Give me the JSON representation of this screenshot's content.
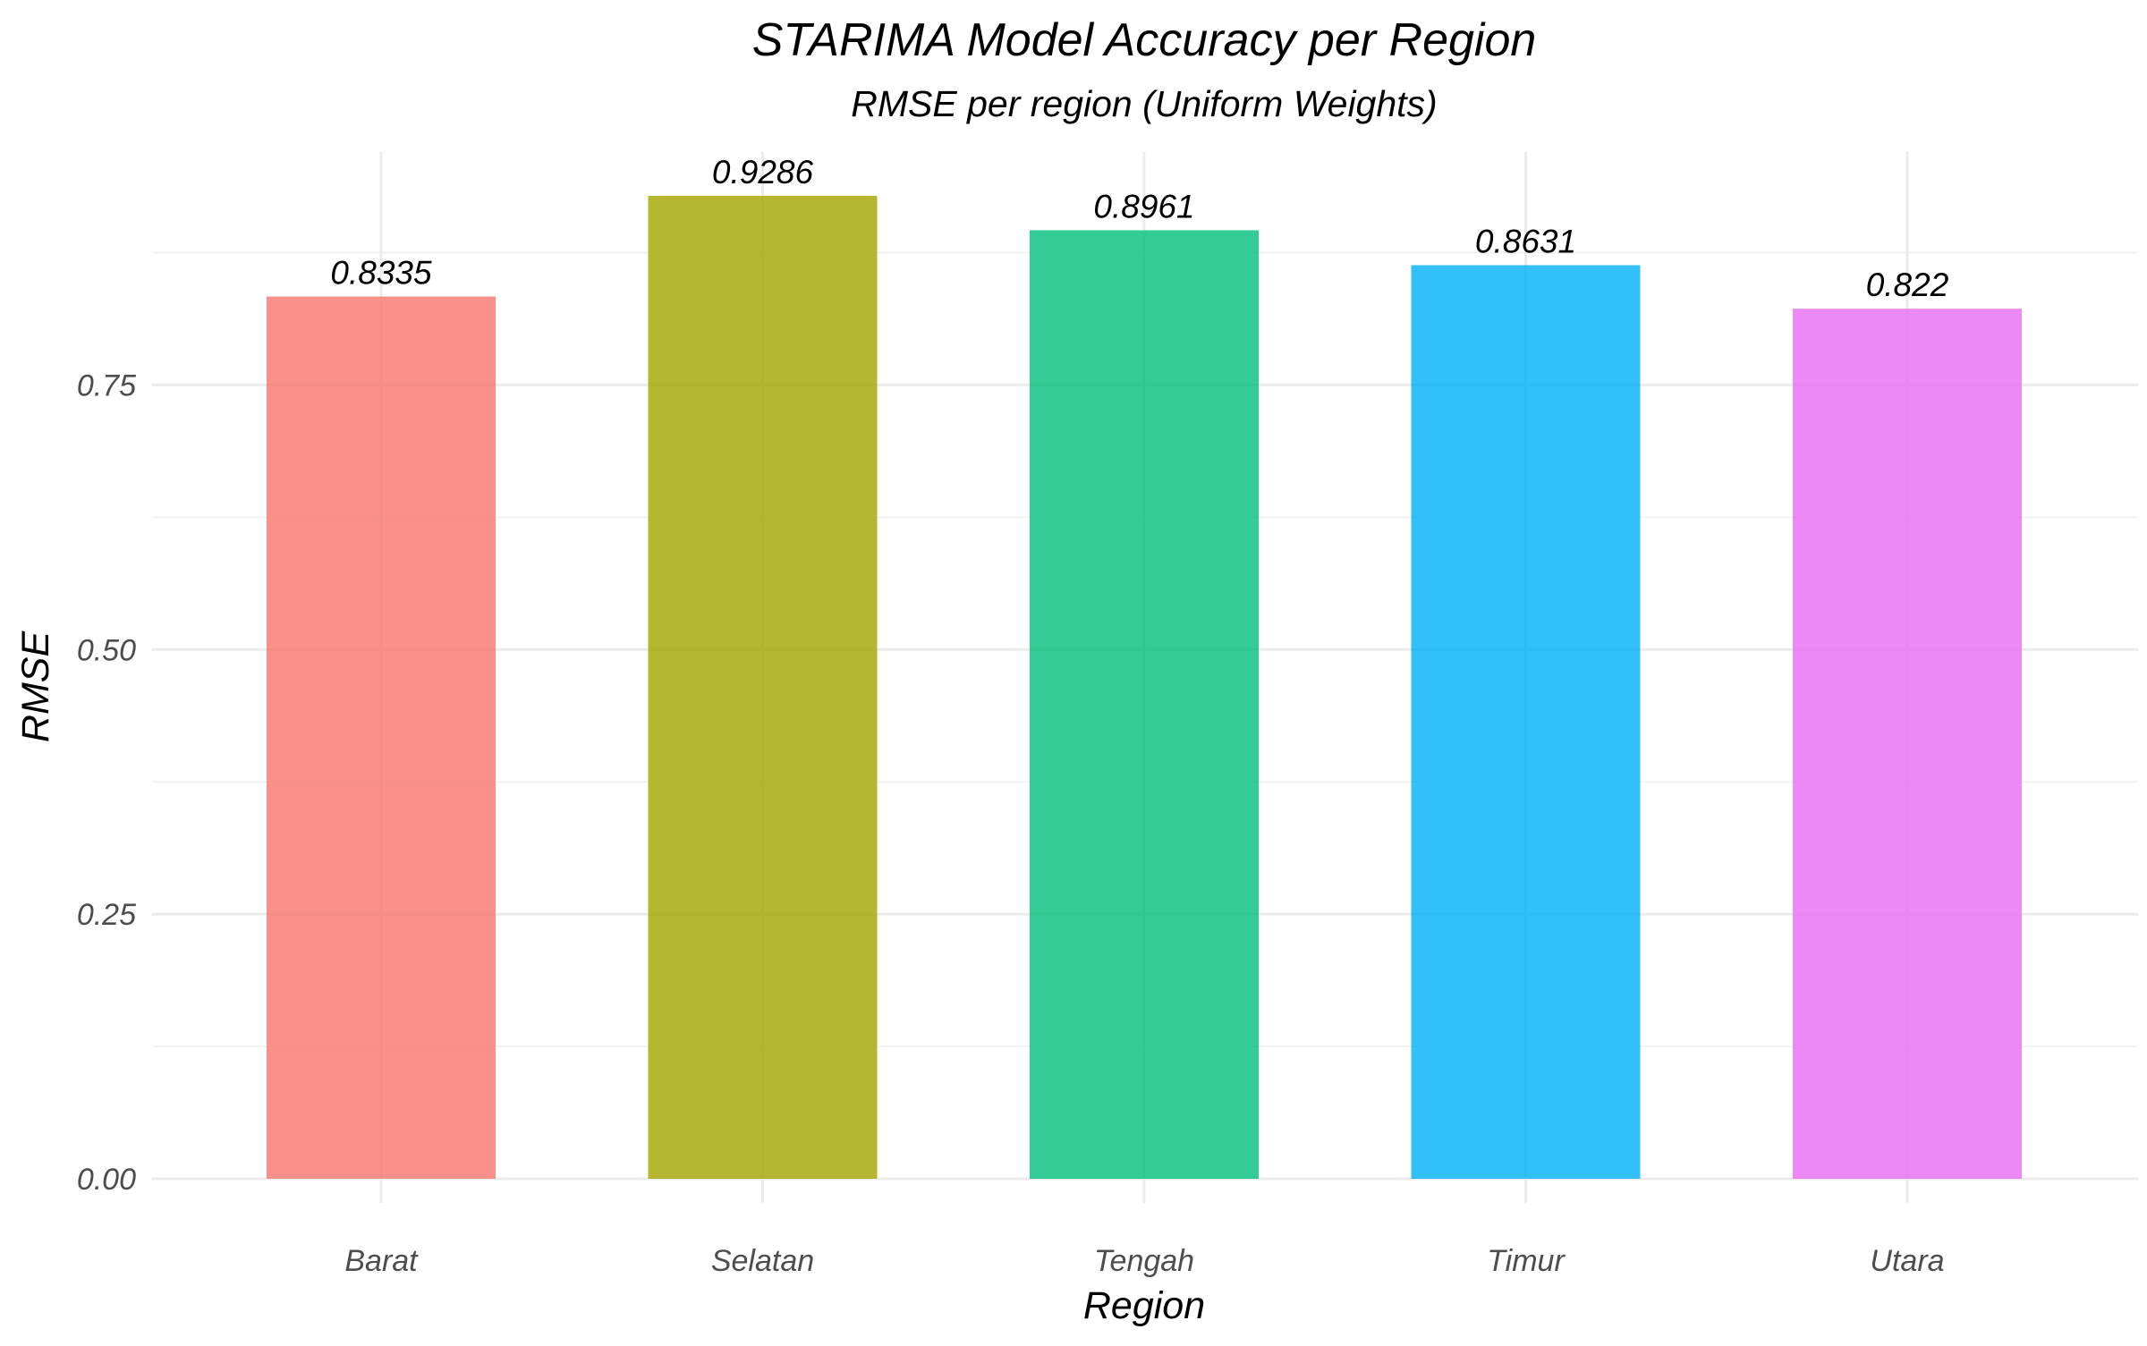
{
  "chart_data": {
    "type": "bar",
    "title": "STARIMA Model Accuracy per Region",
    "subtitle": "RMSE per region (Uniform Weights)",
    "xlabel": "Region",
    "ylabel": "RMSE",
    "categories": [
      "Barat",
      "Selatan",
      "Tengah",
      "Timur",
      "Utara"
    ],
    "values": [
      0.8335,
      0.9286,
      0.8961,
      0.8631,
      0.822
    ],
    "value_labels": [
      "0.8335",
      "0.9286",
      "0.8961",
      "0.8631",
      "0.822"
    ],
    "colors": [
      "#f8766d",
      "#a3a500",
      "#00bf7d",
      "#00b0f6",
      "#e76bf3"
    ],
    "bar_opacity": 0.8,
    "yticks": [
      0,
      0.25,
      0.5,
      0.75
    ],
    "ytick_labels": [
      "0.00",
      "0.25",
      "0.50",
      "0.75"
    ],
    "ylim": [
      0,
      0.9286
    ],
    "grid": true,
    "legend": "none"
  }
}
